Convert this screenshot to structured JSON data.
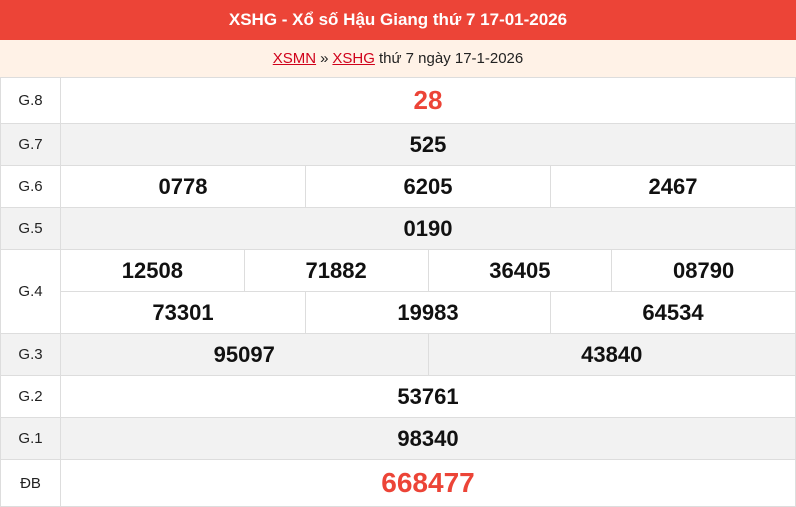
{
  "title": "XSHG - Xổ số Hậu Giang thứ 7 17-01-2026",
  "breadcrumb": {
    "link1": "XSMN",
    "sep": "»",
    "link2": "XSHG",
    "text": "thứ 7 ngày 17-1-2026"
  },
  "prizes": [
    {
      "label": "G.8",
      "rows": [
        [
          "28"
        ]
      ]
    },
    {
      "label": "G.7",
      "rows": [
        [
          "525"
        ]
      ]
    },
    {
      "label": "G.6",
      "rows": [
        [
          "0778",
          "6205",
          "2467"
        ]
      ]
    },
    {
      "label": "G.5",
      "rows": [
        [
          "0190"
        ]
      ]
    },
    {
      "label": "G.4",
      "rows": [
        [
          "12508",
          "71882",
          "36405",
          "08790"
        ],
        [
          "73301",
          "19983",
          "64534"
        ]
      ]
    },
    {
      "label": "G.3",
      "rows": [
        [
          "95097",
          "43840"
        ]
      ]
    },
    {
      "label": "G.2",
      "rows": [
        [
          "53761"
        ]
      ]
    },
    {
      "label": "G.1",
      "rows": [
        [
          "98340"
        ]
      ]
    },
    {
      "label": "ĐB",
      "rows": [
        [
          "668477"
        ]
      ]
    }
  ],
  "colors": {
    "header": "#ec4437",
    "highlight": "#ec4437"
  }
}
